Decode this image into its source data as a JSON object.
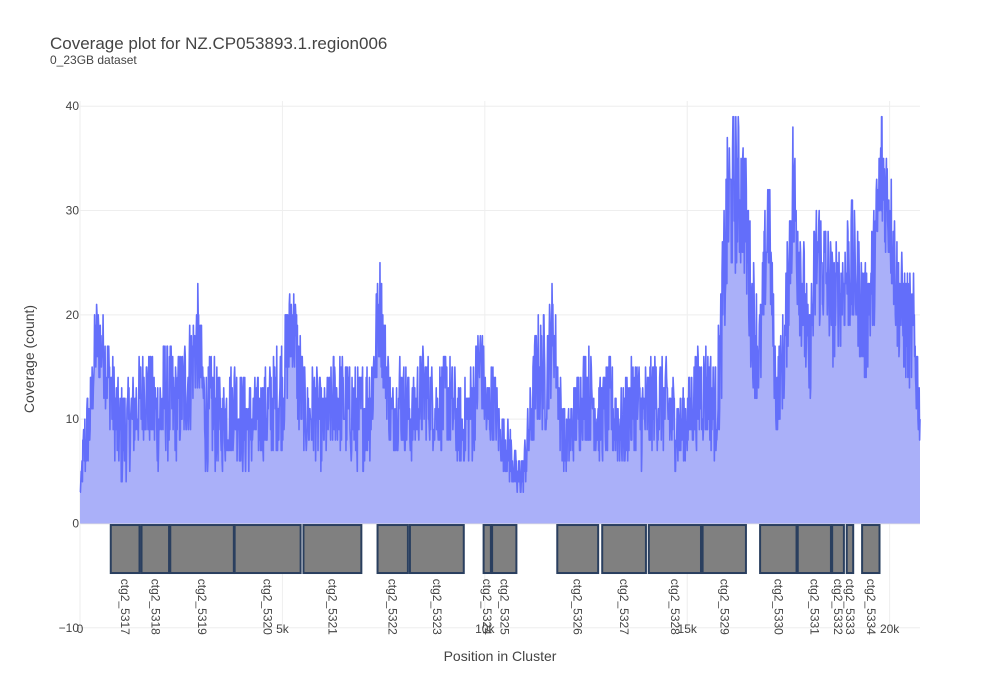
{
  "chart_data": {
    "type": "area",
    "title": "Coverage plot for NZ.CP053893.1.region006",
    "subtitle": "0_23GB dataset",
    "xlabel": "Position in Cluster",
    "ylabel": "Coverage (count)",
    "xlim": [
      0,
      20750
    ],
    "ylim": [
      -10.5,
      40.5
    ],
    "x_ticks": [
      {
        "value": 0,
        "label": "0"
      },
      {
        "value": 5000,
        "label": "5k"
      },
      {
        "value": 10000,
        "label": "10k"
      },
      {
        "value": 15000,
        "label": "15k"
      },
      {
        "value": 20000,
        "label": "20k"
      }
    ],
    "y_ticks": [
      {
        "value": -10,
        "label": "−10"
      },
      {
        "value": 0,
        "label": "0"
      },
      {
        "value": 10,
        "label": "10"
      },
      {
        "value": 20,
        "label": "20"
      },
      {
        "value": 30,
        "label": "30"
      },
      {
        "value": 40,
        "label": "40"
      }
    ],
    "grid": true,
    "line_color": "#636efa",
    "fill_color": "#aab0f9",
    "coverage_profile": {
      "x": [
        0,
        100,
        250,
        400,
        600,
        800,
        1000,
        1300,
        1600,
        1900,
        2100,
        2400,
        2700,
        2900,
        3100,
        3300,
        3500,
        3800,
        4100,
        4400,
        4700,
        5000,
        5250,
        5400,
        5600,
        5800,
        6000,
        6300,
        6600,
        6900,
        7200,
        7400,
        7500,
        7700,
        7900,
        8200,
        8500,
        8800,
        9100,
        9400,
        9700,
        9900,
        10050,
        10200,
        10400,
        10600,
        10800,
        10950,
        11100,
        11300,
        11500,
        11700,
        11850,
        12000,
        12200,
        12500,
        12800,
        13100,
        13400,
        13700,
        13900,
        14200,
        14500,
        14800,
        15000,
        15200,
        15450,
        15700,
        15800,
        16000,
        16200,
        16400,
        16600,
        16800,
        17000,
        17200,
        17400,
        17600,
        17800,
        18000,
        18200,
        18400,
        18600,
        18800,
        19000,
        19200,
        19400,
        19600,
        19800,
        20000,
        20200,
        20400,
        20600,
        20750
      ],
      "y": [
        3,
        7,
        10,
        18,
        16,
        12,
        8,
        10,
        13,
        10,
        12,
        11,
        14,
        18,
        10,
        11,
        9,
        12,
        9,
        10,
        11,
        13,
        20,
        14,
        10,
        11,
        9,
        12,
        11,
        10,
        12,
        21,
        17,
        10,
        12,
        10,
        13,
        11,
        12,
        9,
        11,
        16,
        10,
        12,
        8,
        7,
        4,
        5,
        9,
        15,
        14,
        19,
        11,
        7,
        10,
        13,
        10,
        11,
        9,
        12,
        10,
        12,
        11,
        9,
        10,
        12,
        13,
        11,
        15,
        30,
        32,
        31,
        20,
        16,
        30,
        12,
        16,
        32,
        25,
        15,
        26,
        24,
        21,
        22,
        25,
        23,
        19,
        24,
        34,
        30,
        22,
        19,
        18,
        10
      ],
      "ranges": [
        0,
        4,
        4,
        4,
        4,
        5,
        5,
        5,
        5,
        5,
        6,
        5,
        6,
        5,
        5,
        6,
        4,
        5,
        5,
        4,
        5,
        6,
        5,
        6,
        4,
        5,
        4,
        5,
        5,
        5,
        6,
        5,
        5,
        4,
        5,
        4,
        5,
        4,
        5,
        4,
        5,
        5,
        4,
        4,
        3,
        3,
        2,
        2,
        4,
        6,
        6,
        5,
        4,
        3,
        4,
        5,
        4,
        5,
        4,
        5,
        5,
        5,
        5,
        4,
        4,
        5,
        5,
        5,
        6,
        8,
        8,
        7,
        7,
        5,
        6,
        4,
        5,
        8,
        8,
        5,
        7,
        6,
        6,
        5,
        7,
        6,
        6,
        6,
        7,
        6,
        6,
        6,
        6,
        3
      ]
    },
    "genes": [
      {
        "label": "ctg2_5317",
        "start": 760,
        "end": 1470
      },
      {
        "label": "ctg2_5318",
        "start": 1520,
        "end": 2200
      },
      {
        "label": "ctg2_5319",
        "start": 2230,
        "end": 3800
      },
      {
        "label": "ctg2_5320",
        "start": 3820,
        "end": 5450
      },
      {
        "label": "ctg2_5321",
        "start": 5520,
        "end": 6950
      },
      {
        "label": "ctg2_5322",
        "start": 7350,
        "end": 8100
      },
      {
        "label": "ctg2_5323",
        "start": 8150,
        "end": 9480
      },
      {
        "label": "ctg2_5324",
        "start": 9970,
        "end": 10150
      },
      {
        "label": "ctg2_5325",
        "start": 10180,
        "end": 10780
      },
      {
        "label": "ctg2_5326",
        "start": 11790,
        "end": 12800
      },
      {
        "label": "ctg2_5327",
        "start": 12900,
        "end": 13980
      },
      {
        "label": "ctg2_5328",
        "start": 14050,
        "end": 15340
      },
      {
        "label": "ctg2_5329",
        "start": 15380,
        "end": 16450
      },
      {
        "label": "ctg2_5330",
        "start": 16800,
        "end": 17700
      },
      {
        "label": "ctg2_5331",
        "start": 17730,
        "end": 18550
      },
      {
        "label": "ctg2_5332",
        "start": 18580,
        "end": 18870
      },
      {
        "label": "ctg2_5333",
        "start": 18940,
        "end": 19100
      },
      {
        "label": "ctg2_5334",
        "start": 19320,
        "end": 19750
      }
    ],
    "gene_fill": "#808080",
    "gene_stroke": "#2a3f5f"
  }
}
